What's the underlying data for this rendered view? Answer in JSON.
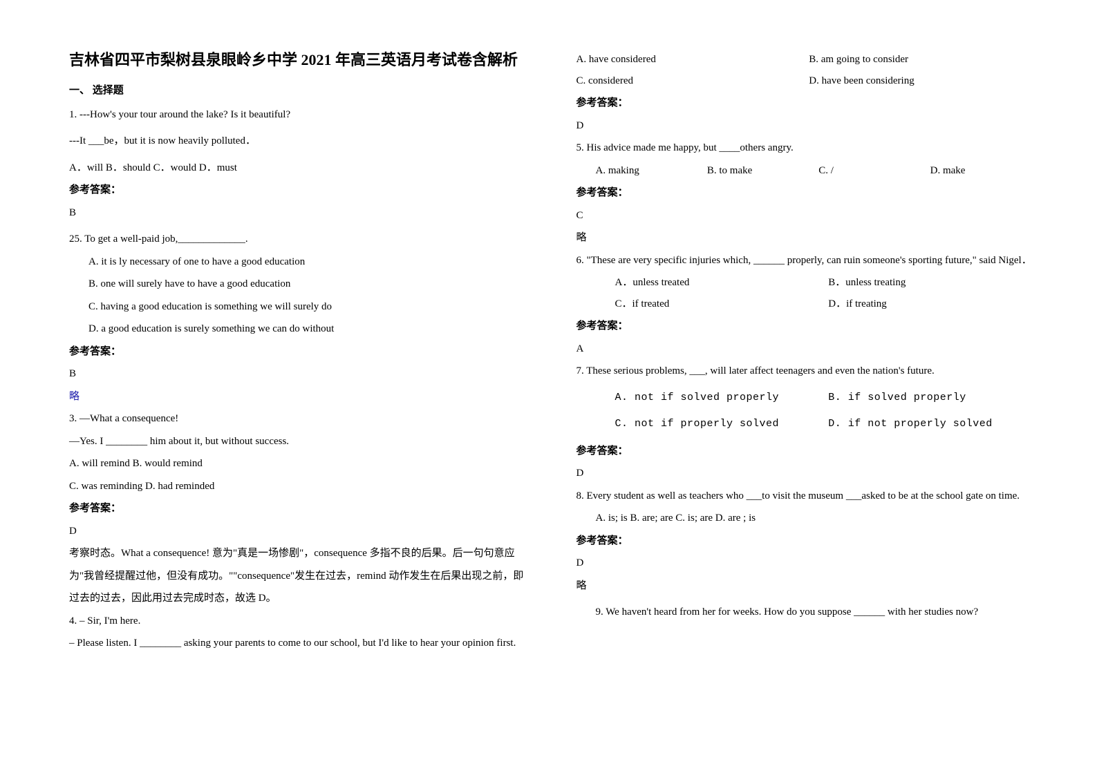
{
  "title": "吉林省四平市梨树县泉眼岭乡中学 2021 年高三英语月考试卷含解析",
  "section1": "一、 选择题",
  "colors": {
    "text": "#000000",
    "bg": "#ffffff",
    "link": "#1a1aaa"
  },
  "fonts": {
    "body_pt": 11,
    "title_pt": 16
  },
  "q1": {
    "line1": "1. ---How's your tour around the lake? Is it beautiful?",
    "line2": "---It ___be，but it is now heavily polluted．",
    "opts": "A．will    B．should    C．would    D．must",
    "ans_label": "参考答案：",
    "ans": "B"
  },
  "q2": {
    "stem": "25. To get a well-paid job,_____________.",
    "a": "A. it is ly necessary of one to have a good education",
    "b": "B. one will surely have to have a good education",
    "c": "C. having a good education is something we will surely do",
    "d": "D. a good education is surely something we can do without",
    "ans_label": "参考答案：",
    "ans": "B",
    "extra": "略"
  },
  "q3": {
    "l1": "3. —What a consequence!",
    "l2": "—Yes. I ________ him about it, but without success.",
    "l3": "A. will remind    B. would remind",
    "l4": "C. was reminding    D. had reminded",
    "ans_label": "参考答案：",
    "ans": "D",
    "exp1": "考察时态。What a consequence! 意为\"真是一场惨剧\"，consequence 多指不良的后果。后一句句意应",
    "exp2": "为\"我曾经提醒过他，但没有成功。\"\"consequence\"发生在过去，remind 动作发生在后果出现之前，即",
    "exp3": "过去的过去，因此用过去完成时态，故选 D。"
  },
  "q4": {
    "l1": "4. – Sir, I'm here.",
    "l2": "– Please listen. I ________ asking your parents to come to our school, but I'd like to hear your opinion first.",
    "a": "A. have considered",
    "b": "B. am going to consider",
    "c": "C. considered",
    "d": "D. have been considering",
    "ans_label": "参考答案：",
    "ans": "D"
  },
  "q5": {
    "stem": "5. His advice made me happy, but ____others angry.",
    "a": "A. making",
    "b": "B. to make",
    "c": "C. /",
    "d": "D. make",
    "ans_label": "参考答案：",
    "ans": "C",
    "extra": "略"
  },
  "q6": {
    "stem": "6. \"These are very specific injuries which, ______ properly, can ruin someone's sporting future,\" said Nigel．",
    "a": "A．unless treated",
    "b": "B．unless treating",
    "c": "C．if treated",
    "d": "D．if treating",
    "ans_label": "参考答案：",
    "ans": "A"
  },
  "q7": {
    "stem": "7. These serious problems, ___, will later affect teenagers and even the nation's future.",
    "a": "A. not if solved properly",
    "b": "B. if solved properly",
    "c": "C. not if properly solved",
    "d": "D. if not properly solved",
    "ans_label": "参考答案：",
    "ans": "D"
  },
  "q8": {
    "stem": "8. Every student as well as teachers who ___to visit the museum ___asked to be at the school gate on time.",
    "opts": "A. is; is   B. are; are       C. is; are D. are ; is",
    "ans_label": "参考答案：",
    "ans": "D",
    "extra": "略"
  },
  "q9": {
    "stem": "9. We haven't heard from her for weeks. How do you suppose ______ with her studies now?"
  }
}
